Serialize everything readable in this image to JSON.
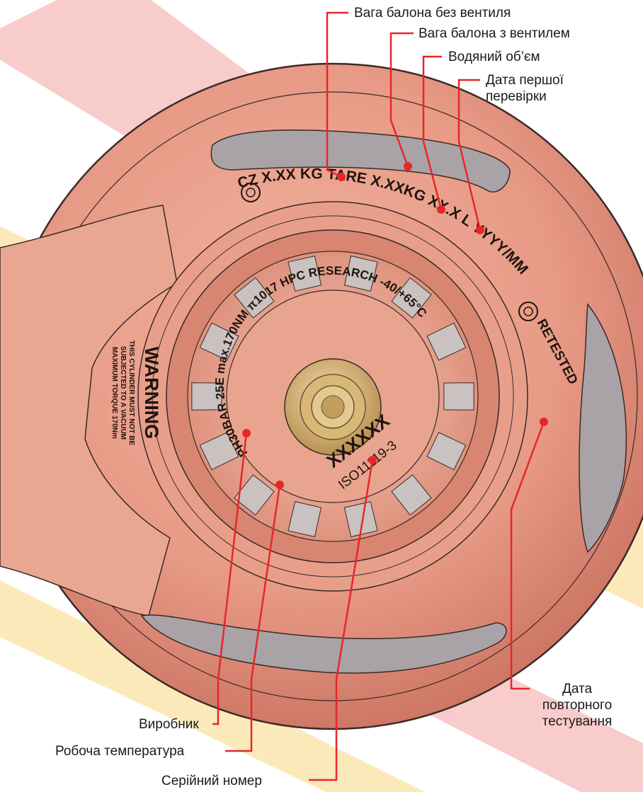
{
  "colors": {
    "leader_line": "#e8262a",
    "cylinder_fill": "#e79a86",
    "cylinder_dark": "#c9705f",
    "stripe_red": "#f4b8b6",
    "stripe_yellow": "#fbe4a3",
    "outline": "#3a2a26",
    "hub": "#c8a760"
  },
  "labels": {
    "tare_without_valve": "Вага балона без вентиля",
    "tare_with_valve": "Вага балона з вентилем",
    "water_volume": "Водяний об’єм",
    "first_test_date": "Дата першої перевірки",
    "manufacturer": "Виробник",
    "working_temperature": "Робоча температура",
    "serial_number": "Серійний номер",
    "retest_date": "Дата повторного тестування"
  },
  "markings": {
    "outer_ring": "CZ X.XX KG   TARE X.XXKG XX.X L YYYY/MM",
    "retested": "RETESTED",
    "warning_title": "WARNING",
    "warning_line1": "THIS CYLINDER MUST NOT BE",
    "warning_line2": "SUBJECTED TO A VACUUM",
    "warning_line3": "MAXIMUM TORQUE 170Nm",
    "inner_ring": "PH30BAR 25E max.170NM π1017 HPC RESEARCH -40/+65°C",
    "serial": "XXXXXX",
    "standard": "ISO11119-3"
  },
  "icons": [
    "warning-stamp-icon",
    "retest-stamp-icon"
  ]
}
